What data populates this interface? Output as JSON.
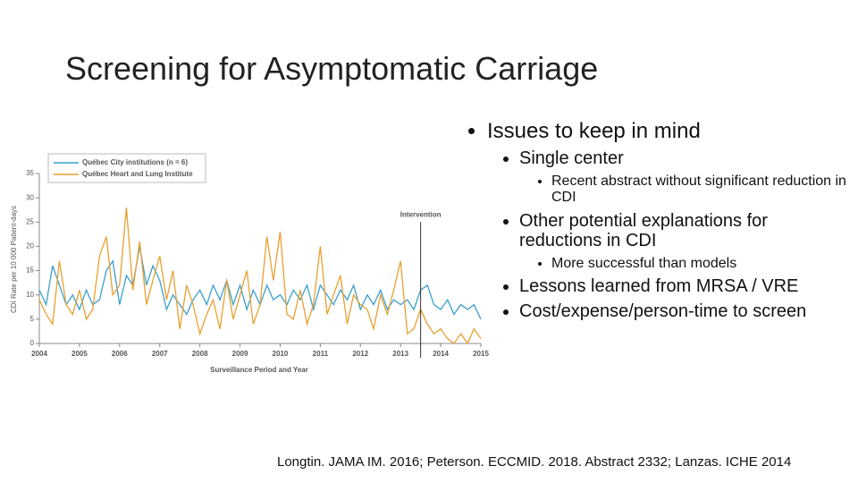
{
  "slide": {
    "title": "Screening for Asymptomatic Carriage",
    "bullets": [
      {
        "text": "Issues to keep in mind",
        "level": 1
      },
      {
        "text": "Single center",
        "level": 2
      },
      {
        "text": "Recent abstract without significant reduction in CDI",
        "level": 3
      },
      {
        "text": "Other potential explanations for reductions in CDI",
        "level": 2
      },
      {
        "text": "More successful than models",
        "level": 3
      },
      {
        "text": "Lessons learned from MRSA / VRE",
        "level": 2
      },
      {
        "text": "Cost/expense/person-time to screen",
        "level": 2
      }
    ],
    "citation": "Longtin. JAMA IM. 2016; Peterson. ECCMID. 2018. Abstract 2332; Lanzas. ICHE 2014"
  },
  "chart_data": {
    "type": "line",
    "x_label": "Surveillance Period and Year",
    "y_label": "CDI Rate per 10 000 Patient-days",
    "x": [
      2004,
      2004.17,
      2004.33,
      2004.5,
      2004.67,
      2004.83,
      2005,
      2005.17,
      2005.33,
      2005.5,
      2005.67,
      2005.83,
      2006,
      2006.17,
      2006.33,
      2006.5,
      2006.67,
      2006.83,
      2007,
      2007.17,
      2007.33,
      2007.5,
      2007.67,
      2007.83,
      2008,
      2008.17,
      2008.33,
      2008.5,
      2008.67,
      2008.83,
      2009,
      2009.17,
      2009.33,
      2009.5,
      2009.67,
      2009.83,
      2010,
      2010.17,
      2010.33,
      2010.5,
      2010.67,
      2010.83,
      2011,
      2011.17,
      2011.33,
      2011.5,
      2011.67,
      2011.83,
      2012,
      2012.17,
      2012.33,
      2012.5,
      2012.67,
      2012.83,
      2013,
      2013.17,
      2013.33,
      2013.5,
      2013.67,
      2013.83,
      2014,
      2014.17,
      2014.33,
      2014.5,
      2014.67,
      2014.83,
      2015
    ],
    "series": [
      {
        "name": "Québec City institutions (n = 6)",
        "color": "#3a9fd0",
        "values": [
          11,
          8,
          16,
          12,
          8,
          10,
          7,
          11,
          8,
          9,
          15,
          17,
          8,
          14,
          12,
          20,
          12,
          16,
          13,
          7,
          10,
          8,
          6,
          9,
          11,
          8,
          12,
          9,
          13,
          8,
          12,
          7,
          11,
          8,
          12,
          9,
          10,
          8,
          11,
          9,
          12,
          7,
          12,
          10,
          8,
          11,
          9,
          12,
          7,
          10,
          8,
          11,
          7,
          9,
          8,
          9,
          7,
          11,
          12,
          8,
          7,
          9,
          6,
          8,
          7,
          8,
          5
        ]
      },
      {
        "name": "Québec Heart and Lung Institute",
        "color": "#e8a030",
        "values": [
          9,
          6,
          4,
          17,
          8,
          6,
          11,
          5,
          7,
          18,
          22,
          10,
          12,
          28,
          11,
          21,
          8,
          13,
          18,
          9,
          15,
          3,
          12,
          8,
          2,
          6,
          9,
          3,
          13,
          5,
          10,
          15,
          4,
          8,
          22,
          13,
          23,
          6,
          5,
          11,
          4,
          8,
          20,
          6,
          10,
          14,
          4,
          10,
          8,
          7,
          3,
          10,
          6,
          11,
          17,
          2,
          3,
          7,
          4,
          2,
          3,
          1,
          0,
          2,
          0,
          3,
          1
        ]
      }
    ],
    "xlim": [
      2004,
      2015
    ],
    "xticks": [
      2004,
      2005,
      2006,
      2007,
      2008,
      2009,
      2010,
      2011,
      2012,
      2013,
      2014,
      2015
    ],
    "ylim": [
      0,
      35
    ],
    "yticks": [
      0,
      5,
      10,
      15,
      20,
      25,
      30,
      35
    ],
    "annotations": [
      {
        "text": "Intervention",
        "x": 2013.5
      }
    ],
    "legend": "top-left"
  }
}
